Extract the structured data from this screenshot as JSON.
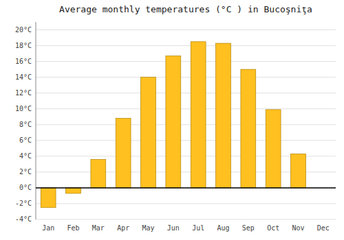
{
  "chart_data": {
    "type": "bar",
    "title": "Average monthly temperatures (°C ) in Bucoşniţa",
    "categories": [
      "Jan",
      "Feb",
      "Mar",
      "Apr",
      "May",
      "Jun",
      "Jul",
      "Aug",
      "Sep",
      "Oct",
      "Nov",
      "Dec"
    ],
    "values": [
      -2.5,
      -0.7,
      3.6,
      8.8,
      14.0,
      16.7,
      18.5,
      18.3,
      15.0,
      9.9,
      4.3,
      0.0
    ],
    "color": "#FFC020",
    "ylim": [
      -4,
      21
    ],
    "yticks": [
      {
        "value": -4,
        "label": "-4°C"
      },
      {
        "value": -2,
        "label": "-2°C"
      },
      {
        "value": 0,
        "label": "0°C"
      },
      {
        "value": 2,
        "label": "2°C"
      },
      {
        "value": 4,
        "label": "4°C"
      },
      {
        "value": 6,
        "label": "6°C"
      },
      {
        "value": 8,
        "label": "8°C"
      },
      {
        "value": 10,
        "label": "10°C"
      },
      {
        "value": 12,
        "label": "12°C"
      },
      {
        "value": 14,
        "label": "14°C"
      },
      {
        "value": 16,
        "label": "16°C"
      },
      {
        "value": 18,
        "label": "18°C"
      },
      {
        "value": 20,
        "label": "20°C"
      }
    ],
    "grid": true
  }
}
